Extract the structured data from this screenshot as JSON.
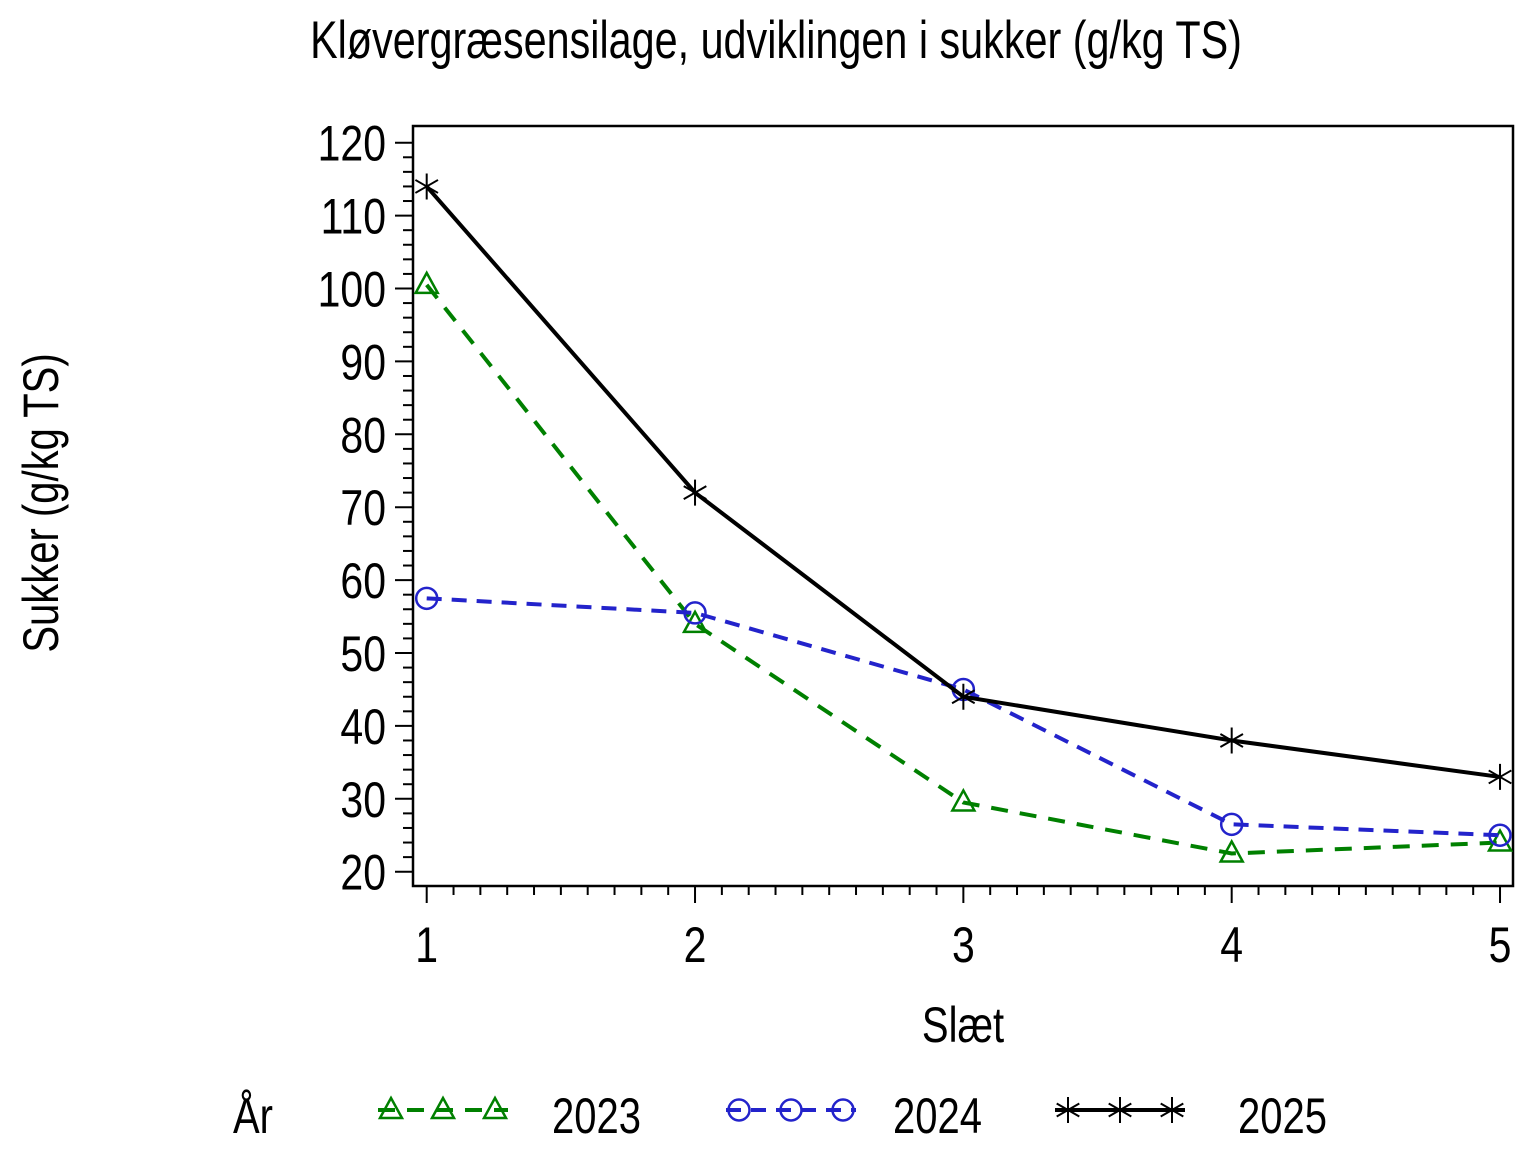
{
  "chart_data": {
    "type": "line",
    "title": "Kløvergræsensilage,  udviklingen  i  sukker  (g/kg TS)",
    "xlabel": "Slæt",
    "ylabel": "Sukker  (g/kg TS)",
    "legend_title": "År",
    "legend_position": "bottom",
    "grid": false,
    "x": [
      1,
      2,
      3,
      4,
      5
    ],
    "ylim": [
      20,
      120
    ],
    "y_tick_labels": [
      20,
      30,
      40,
      50,
      60,
      70,
      80,
      90,
      100,
      110,
      120
    ],
    "yaxis": {
      "major_step": 10,
      "minor_step": 2
    },
    "xaxis": {
      "minor_per_major": 10
    },
    "frame_color": "#000000",
    "series": [
      {
        "name": "2023",
        "color": "#008000",
        "line": "dashed",
        "dash": "17 12",
        "marker": "triangle",
        "values": [
          100.5,
          54,
          29.5,
          22.5,
          24
        ]
      },
      {
        "name": "2024",
        "color": "#2323cb",
        "line": "dashed",
        "dash": "15 10",
        "marker": "circle",
        "values": [
          57.5,
          55.5,
          45,
          26.5,
          25
        ]
      },
      {
        "name": "2025",
        "color": "#000000",
        "line": "solid",
        "dash": null,
        "marker": "star",
        "values": [
          114,
          72,
          44,
          38,
          33
        ]
      }
    ]
  }
}
